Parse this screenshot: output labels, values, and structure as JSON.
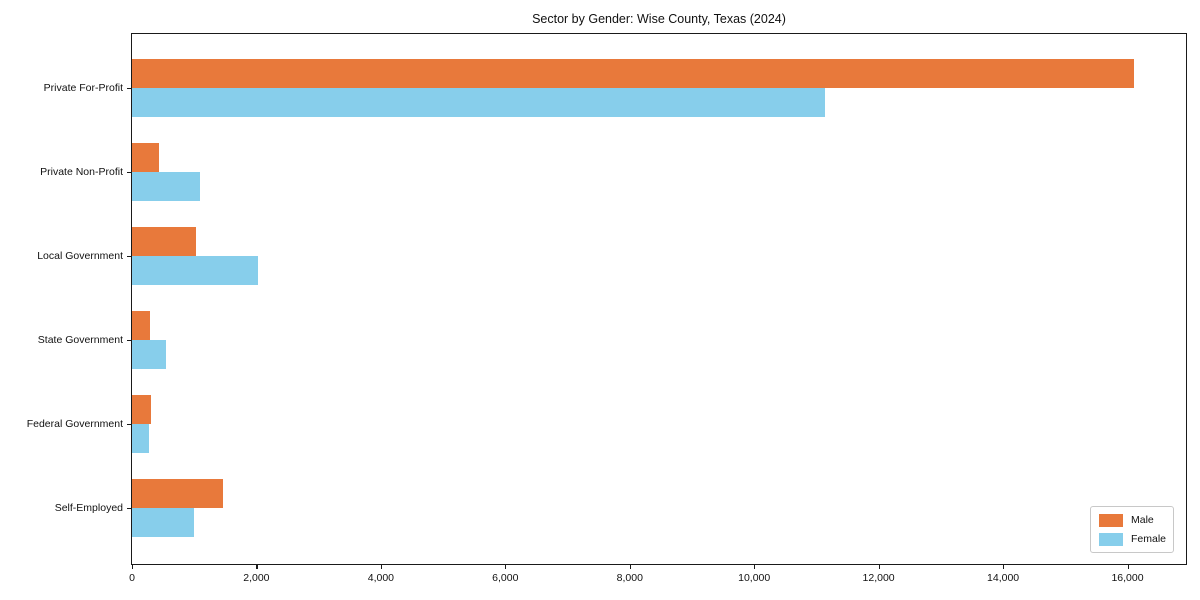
{
  "title": "Sector by Gender: Wise County, Texas (2024)",
  "colors": {
    "male": "#e8793b",
    "female": "#87ceeb",
    "spine": "#1a1a1a",
    "legend_border": "#c8c8c8",
    "text": "#111111"
  },
  "chart_data": {
    "type": "bar",
    "orientation": "horizontal",
    "title": "Sector by Gender: Wise County, Texas (2024)",
    "xlabel": "",
    "ylabel": "",
    "categories": [
      "Private For-Profit",
      "Private Non-Profit",
      "Local Government",
      "State Government",
      "Federal Government",
      "Self-Employed"
    ],
    "series": [
      {
        "name": "Male",
        "color": "#e8793b",
        "values": [
          16100,
          440,
          1030,
          290,
          310,
          1460
        ]
      },
      {
        "name": "Female",
        "color": "#87ceeb",
        "values": [
          11130,
          1090,
          2020,
          550,
          280,
          1000
        ]
      }
    ],
    "xlim": [
      0,
      16940
    ],
    "xtick_values": [
      0,
      2000,
      4000,
      6000,
      8000,
      10000,
      12000,
      14000,
      16000
    ],
    "xtick_labels": [
      "0",
      "2,000",
      "4,000",
      "6,000",
      "8,000",
      "10,000",
      "12,000",
      "14,000",
      "16,000"
    ],
    "legend_position": "lower right",
    "grid": false
  }
}
